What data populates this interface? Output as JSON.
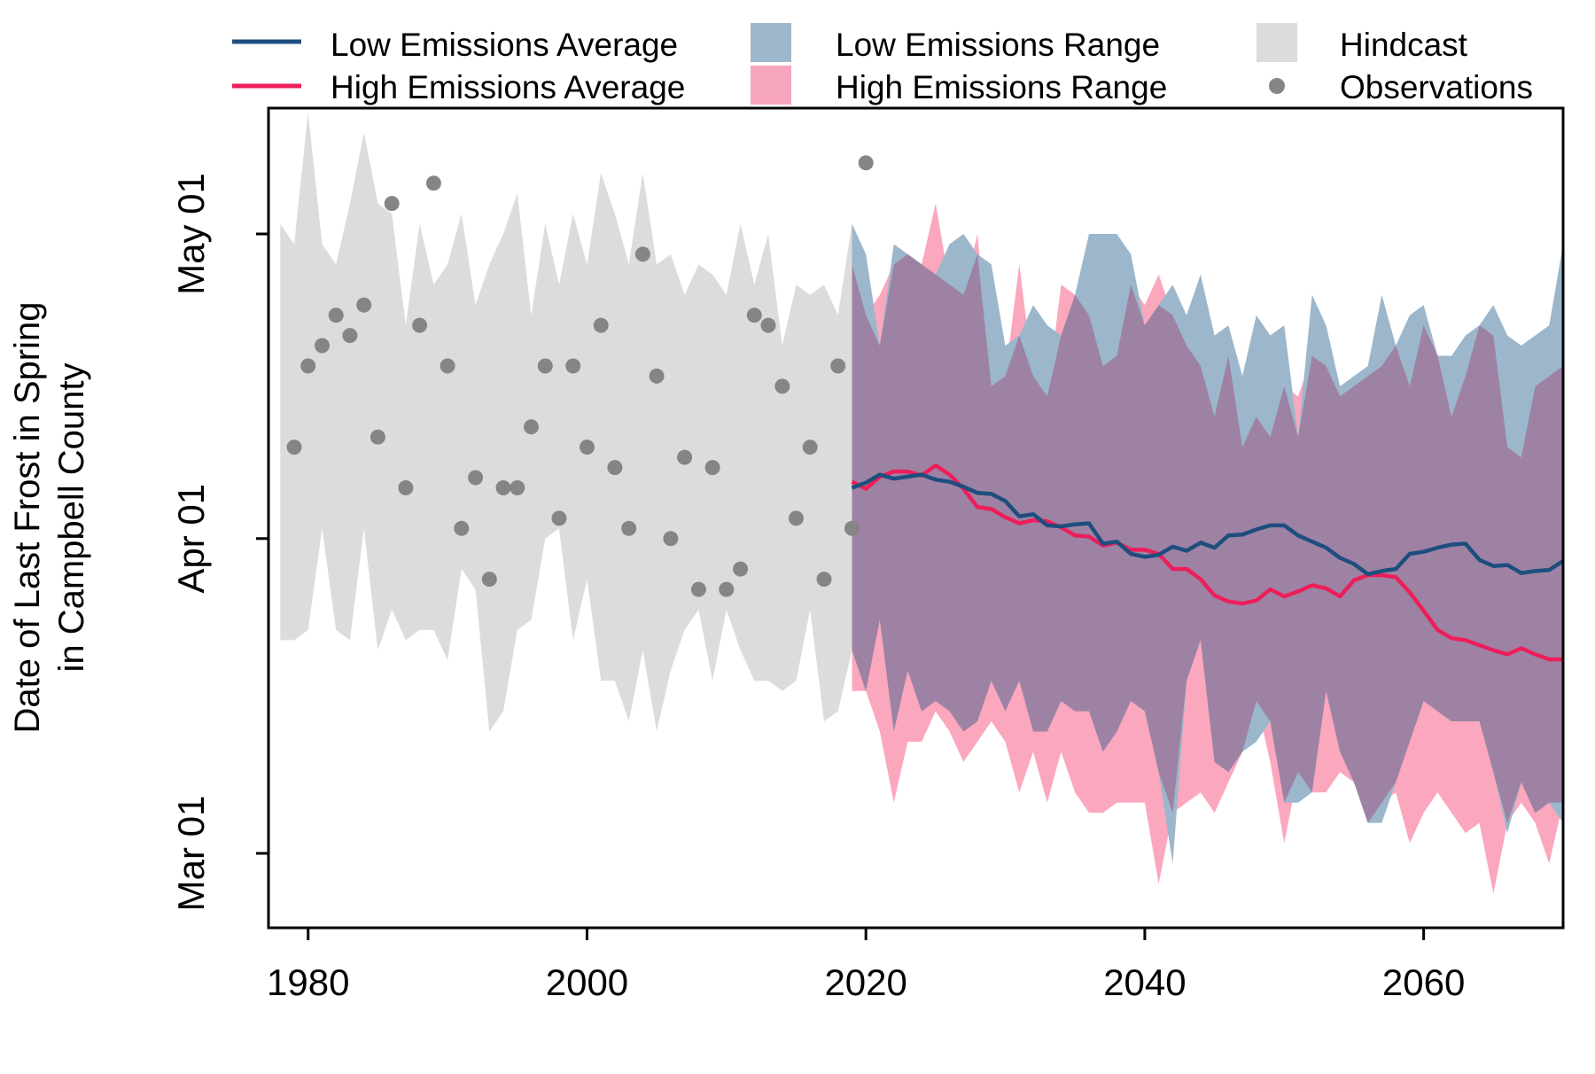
{
  "chart_data": {
    "type": "area",
    "title": "",
    "xlabel": "",
    "ylabel": "Date of Last Frost in Spring in Campbell County",
    "ylabel_lines": [
      "Date of Last Frost in Spring",
      "in Campbell County"
    ],
    "xlim": [
      1978,
      2070
    ],
    "ylim": [
      -6,
      72
    ],
    "y_unit": "days after Mar 01",
    "x_ticks": [
      1980,
      2000,
      2020,
      2040,
      2060
    ],
    "x_tick_labels": [
      "1980",
      "2000",
      "2020",
      "2040",
      "2060"
    ],
    "y_ticks": [
      0,
      31,
      61
    ],
    "y_tick_labels": [
      "Mar 01",
      "Apr 01",
      "May 01"
    ],
    "grid": false,
    "legend_position": "top",
    "legend": [
      {
        "key": "low_avg",
        "label": "Low Emissions Average",
        "symbol": "line",
        "color": "#1d4e7e"
      },
      {
        "key": "high_avg",
        "label": "High Emissions Average",
        "symbol": "line",
        "color": "#ec1f5a"
      },
      {
        "key": "low_range",
        "label": "Low Emissions Range",
        "symbol": "box",
        "color": "#9db8cc"
      },
      {
        "key": "high_range",
        "label": "High Emissions Range",
        "symbol": "box",
        "color": "#f8a6bd"
      },
      {
        "key": "hindcast",
        "label": "Hindcast",
        "symbol": "box",
        "color": "#dcdcdc"
      },
      {
        "key": "observations",
        "label": "Observations",
        "symbol": "point",
        "color": "#858585"
      }
    ],
    "colors": {
      "hindcast": "#dcdcdc",
      "low_range": "#9cb7cb",
      "high_range": "#fba7bd",
      "overlap": "#9e82a4",
      "low_avg": "#1d4e7e",
      "high_avg": "#ec1f5a",
      "observations": "#858585"
    },
    "hindcast": {
      "x": [
        1978,
        1979,
        1980,
        1981,
        1982,
        1983,
        1984,
        1985,
        1986,
        1987,
        1988,
        1989,
        1990,
        1991,
        1992,
        1993,
        1994,
        1995,
        1996,
        1997,
        1998,
        1999,
        2000,
        2001,
        2002,
        2003,
        2004,
        2005,
        2006,
        2007,
        2008,
        2009,
        2010,
        2011,
        2012,
        2013,
        2014,
        2015,
        2016,
        2017,
        2018,
        2019
      ],
      "upper": [
        62,
        60,
        73,
        60,
        58,
        64,
        71,
        64,
        63,
        52,
        62,
        56,
        58,
        63,
        54,
        58,
        61,
        65,
        53,
        62,
        56,
        63,
        58,
        67,
        63,
        58,
        67,
        58,
        59,
        55,
        58,
        57,
        55,
        62,
        56,
        61,
        50,
        56,
        55,
        56,
        53,
        62
      ],
      "lower": [
        21,
        21,
        22,
        32,
        22,
        21,
        32,
        20,
        24,
        21,
        22,
        22,
        19,
        28,
        26,
        12,
        14,
        22,
        23,
        31,
        32,
        21,
        27,
        17,
        17,
        13,
        20,
        12,
        18,
        22,
        24,
        17,
        24,
        20,
        17,
        17,
        16,
        17,
        24,
        13,
        14,
        20
      ]
    },
    "low_range": {
      "x": [
        2019,
        2020,
        2021,
        2022,
        2023,
        2024,
        2025,
        2026,
        2027,
        2028,
        2029,
        2030,
        2031,
        2032,
        2033,
        2034,
        2035,
        2036,
        2037,
        2038,
        2039,
        2040,
        2041,
        2042,
        2043,
        2044,
        2045,
        2046,
        2047,
        2048,
        2049,
        2050,
        2051,
        2052,
        2053,
        2054,
        2055,
        2056,
        2057,
        2058,
        2059,
        2060,
        2061,
        2062,
        2063,
        2064,
        2065,
        2066,
        2067,
        2068,
        2069,
        2070
      ],
      "upper": [
        62,
        59,
        50,
        60,
        59,
        58,
        57,
        60,
        61,
        59,
        58,
        50,
        51,
        54,
        52,
        51,
        55,
        61,
        61,
        61,
        59,
        52,
        54,
        56,
        53,
        57,
        51,
        52,
        47,
        53,
        51,
        52,
        41,
        55,
        52,
        46,
        47,
        48,
        55,
        50,
        53,
        54,
        49,
        49,
        51,
        52,
        54,
        51,
        50,
        51,
        52,
        60
      ],
      "lower": [
        20,
        16,
        23,
        12,
        18,
        14,
        15,
        14,
        12,
        13,
        17,
        14,
        17,
        12,
        12,
        15,
        14,
        14,
        10,
        12,
        15,
        14,
        8,
        -1,
        17,
        21,
        9,
        8,
        10,
        11,
        13,
        5,
        5,
        6,
        16,
        10,
        7,
        3,
        3,
        7,
        11,
        15,
        14,
        13,
        13,
        13,
        8,
        2,
        7,
        4,
        5,
        3
      ]
    },
    "high_range": {
      "x": [
        2019,
        2020,
        2021,
        2022,
        2023,
        2024,
        2025,
        2026,
        2027,
        2028,
        2029,
        2030,
        2031,
        2032,
        2033,
        2034,
        2035,
        2036,
        2037,
        2038,
        2039,
        2040,
        2041,
        2042,
        2043,
        2044,
        2045,
        2046,
        2047,
        2048,
        2049,
        2050,
        2051,
        2052,
        2053,
        2054,
        2055,
        2056,
        2057,
        2058,
        2059,
        2060,
        2061,
        2062,
        2063,
        2064,
        2065,
        2066,
        2067,
        2068,
        2069,
        2070
      ],
      "upper": [
        58,
        53,
        55,
        58,
        59,
        58,
        64,
        56,
        55,
        61,
        46,
        47,
        58,
        47,
        45,
        56,
        55,
        53,
        48,
        49,
        56,
        54,
        57,
        53,
        50,
        48,
        43,
        49,
        40,
        43,
        41,
        46,
        45,
        49,
        48,
        45,
        46,
        47,
        48,
        50,
        46,
        52,
        49,
        43,
        47,
        52,
        51,
        40,
        39,
        46,
        47,
        48
      ],
      "lower": [
        16,
        16,
        12,
        5,
        11,
        11,
        14,
        12,
        9,
        11,
        13,
        11,
        6,
        10,
        5,
        10,
        6,
        4,
        4,
        5,
        5,
        5,
        -3,
        4,
        5,
        6,
        4,
        7,
        10,
        15,
        9,
        1,
        8,
        6,
        6,
        8,
        7,
        3,
        5,
        6,
        1,
        4,
        6,
        4,
        2,
        3,
        -4,
        3,
        5,
        3,
        -1,
        5
      ]
    },
    "low_avg": {
      "x": [
        2019,
        2020,
        2021,
        2022,
        2023,
        2024,
        2025,
        2026,
        2027,
        2028,
        2029,
        2030,
        2031,
        2032,
        2033,
        2034,
        2035,
        2036,
        2037,
        2038,
        2039,
        2040,
        2041,
        2042,
        2043,
        2044,
        2045,
        2046,
        2047,
        2048,
        2049,
        2050,
        2051,
        2052,
        2053,
        2054,
        2055,
        2056,
        2057,
        2058,
        2059,
        2060,
        2061,
        2062,
        2063,
        2064,
        2065,
        2066,
        2067,
        2068,
        2069,
        2070
      ],
      "values": [
        36,
        36.5,
        37.3,
        36.9,
        37.1,
        37.3,
        36.8,
        36.6,
        36.1,
        35.5,
        35.4,
        34.7,
        33.2,
        33.4,
        32.3,
        32.2,
        32.4,
        32.5,
        30.5,
        30.7,
        29.5,
        29.2,
        29.4,
        30.2,
        29.8,
        30.6,
        30.1,
        31.3,
        31.4,
        31.9,
        32.3,
        32.3,
        31.3,
        30.7,
        30.1,
        29.1,
        28.5,
        27.5,
        27.8,
        28,
        29.5,
        29.7,
        30.1,
        30.4,
        30.5,
        28.9,
        28.3,
        28.4,
        27.6,
        27.8,
        27.9,
        28.8
      ]
    },
    "high_avg": {
      "x": [
        2019,
        2020,
        2021,
        2022,
        2023,
        2024,
        2025,
        2026,
        2027,
        2028,
        2029,
        2030,
        2031,
        2032,
        2033,
        2034,
        2035,
        2036,
        2037,
        2038,
        2039,
        2040,
        2041,
        2042,
        2043,
        2044,
        2045,
        2046,
        2047,
        2048,
        2049,
        2050,
        2051,
        2052,
        2053,
        2054,
        2055,
        2056,
        2057,
        2058,
        2059,
        2060,
        2061,
        2062,
        2063,
        2064,
        2065,
        2066,
        2067,
        2068,
        2069,
        2070
      ],
      "values": [
        36.6,
        35.9,
        37.1,
        37.6,
        37.6,
        37.2,
        38.2,
        37.3,
        35.9,
        34.1,
        33.9,
        33.1,
        32.5,
        32.8,
        32.7,
        32.1,
        31.3,
        31.2,
        30.3,
        30.6,
        29.9,
        29.9,
        29.5,
        28,
        28,
        27,
        25.4,
        24.8,
        24.6,
        24.9,
        26,
        25.3,
        25.8,
        26.4,
        26.1,
        25.3,
        26.9,
        27.4,
        27.4,
        27.2,
        25.7,
        23.9,
        22,
        21.2,
        21,
        20.5,
        20,
        19.6,
        20.2,
        19.6,
        19.1,
        19.1
      ]
    },
    "observations": {
      "x": [
        1979,
        1980,
        1981,
        1982,
        1983,
        1984,
        1985,
        1986,
        1987,
        1988,
        1989,
        1990,
        1991,
        1992,
        1993,
        1994,
        1995,
        1996,
        1997,
        1998,
        1999,
        2000,
        2001,
        2002,
        2003,
        2004,
        2005,
        2006,
        2007,
        2008,
        2009,
        2010,
        2011,
        2012,
        2013,
        2014,
        2015,
        2016,
        2017,
        2018,
        2019,
        2020
      ],
      "values": [
        40,
        48,
        50,
        53,
        51,
        54,
        41,
        64,
        36,
        52,
        66,
        48,
        32,
        37,
        27,
        36,
        36,
        42,
        48,
        33,
        48,
        40,
        52,
        38,
        32,
        59,
        47,
        31,
        39,
        26,
        38,
        26,
        28,
        53,
        52,
        46,
        33,
        40,
        27,
        48,
        32,
        68
      ]
    }
  }
}
